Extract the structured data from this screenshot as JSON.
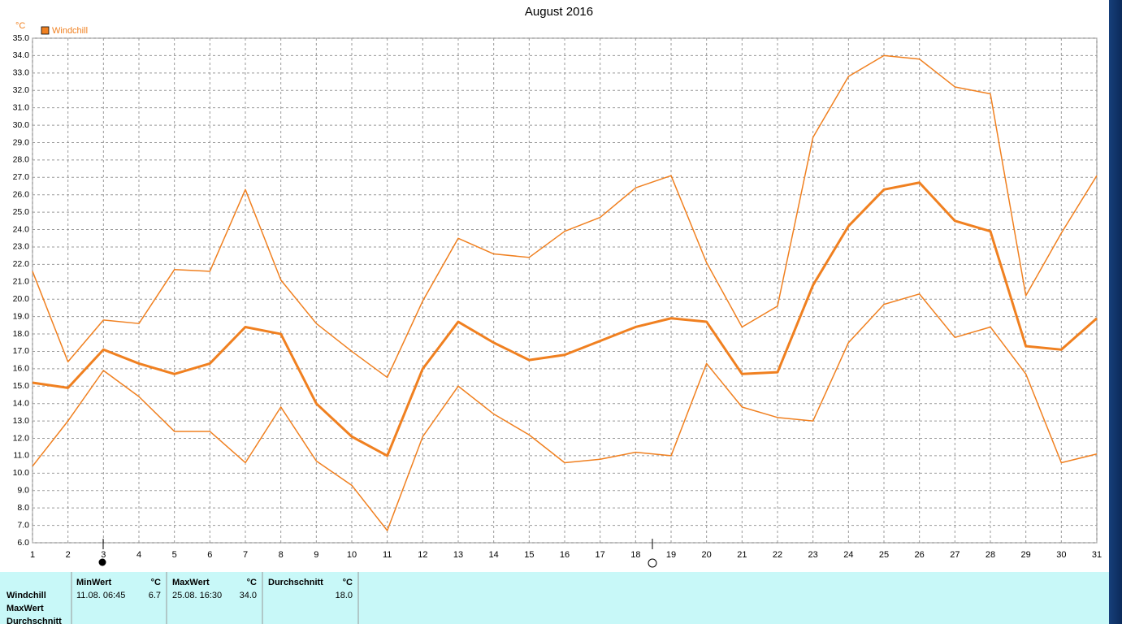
{
  "chart_data": {
    "type": "line",
    "title": "August 2016",
    "y_unit": "°C",
    "x": [
      1,
      2,
      3,
      4,
      5,
      6,
      7,
      8,
      9,
      10,
      11,
      12,
      13,
      14,
      15,
      16,
      17,
      18,
      19,
      20,
      21,
      22,
      23,
      24,
      25,
      26,
      27,
      28,
      29,
      30,
      31
    ],
    "xlim": [
      1,
      31
    ],
    "xticks": [
      1,
      2,
      3,
      4,
      5,
      6,
      7,
      8,
      9,
      10,
      11,
      12,
      13,
      14,
      15,
      16,
      17,
      18,
      19,
      20,
      21,
      22,
      23,
      24,
      25,
      26,
      27,
      28,
      29,
      30,
      31
    ],
    "ylim": [
      6,
      35
    ],
    "yticks": [
      {
        "value": 6,
        "label": "6.0"
      },
      {
        "value": 7,
        "label": "7.0"
      },
      {
        "value": 8,
        "label": "8.0"
      },
      {
        "value": 9,
        "label": "9.0"
      },
      {
        "value": 10,
        "label": "10.0"
      },
      {
        "value": 11,
        "label": "11.0"
      },
      {
        "value": 12,
        "label": "12.0"
      },
      {
        "value": 13,
        "label": "13.0"
      },
      {
        "value": 14,
        "label": "14.0"
      },
      {
        "value": 15,
        "label": "15.0"
      },
      {
        "value": 16,
        "label": "16.0"
      },
      {
        "value": 17,
        "label": "17.0"
      },
      {
        "value": 18,
        "label": "18.0"
      },
      {
        "value": 19,
        "label": "19.0"
      },
      {
        "value": 20,
        "label": "20.0"
      },
      {
        "value": 21,
        "label": "21.0"
      },
      {
        "value": 22,
        "label": "22.0"
      },
      {
        "value": 23,
        "label": "23.0"
      },
      {
        "value": 24,
        "label": "24.0"
      },
      {
        "value": 25,
        "label": "25.0"
      },
      {
        "value": 26,
        "label": "26.0"
      },
      {
        "value": 27,
        "label": "27.0"
      },
      {
        "value": 28,
        "label": "28.0"
      },
      {
        "value": 29,
        "label": "29.0"
      },
      {
        "value": 30,
        "label": "30.0"
      },
      {
        "value": 31,
        "label": "31.0"
      },
      {
        "value": 32,
        "label": "32.0"
      },
      {
        "value": 33,
        "label": "33.0"
      },
      {
        "value": 34,
        "label": "34.0"
      },
      {
        "value": 35,
        "label": "35.0"
      }
    ],
    "grid": true,
    "series": [
      {
        "color": "#f08020",
        "width": 1.5,
        "values": [
          21.6,
          16.4,
          18.8,
          18.6,
          21.7,
          21.6,
          26.3,
          21.1,
          18.6,
          17.0,
          15.5,
          19.9,
          23.5,
          22.6,
          22.4,
          23.9,
          24.7,
          26.4,
          27.1,
          22.1,
          18.4,
          19.6,
          29.3,
          32.8,
          34.0,
          33.8,
          32.2,
          31.8,
          20.2,
          23.8,
          27.1
        ]
      },
      {
        "name": "Windchill",
        "color": "#f08020",
        "width": 3,
        "values": [
          15.2,
          14.9,
          17.1,
          16.3,
          15.7,
          16.3,
          18.4,
          18.0,
          14.0,
          12.1,
          11.0,
          16.0,
          18.7,
          17.5,
          16.5,
          16.8,
          17.6,
          18.4,
          18.9,
          18.7,
          15.7,
          15.8,
          20.8,
          24.2,
          26.3,
          26.7,
          24.5,
          23.9,
          17.3,
          17.1,
          18.9
        ]
      },
      {
        "color": "#f08020",
        "width": 1.5,
        "values": [
          10.4,
          13.0,
          15.9,
          14.4,
          12.4,
          12.4,
          10.6,
          13.8,
          10.7,
          9.3,
          6.7,
          12.1,
          15.0,
          13.4,
          12.2,
          10.6,
          10.8,
          11.2,
          11.0,
          16.3,
          13.8,
          13.2,
          13.0,
          17.5,
          19.7,
          20.3,
          17.8,
          18.4,
          15.7,
          10.6,
          11.1
        ]
      }
    ]
  },
  "summary": {
    "row_labels": [
      "Windchill",
      "MaxWert",
      "Durchschnitt"
    ],
    "columns": [
      {
        "header": "MinWert",
        "unit": "°C",
        "time": "11.08. 06:45",
        "value": "6.7"
      },
      {
        "header": "MaxWert",
        "unit": "°C",
        "time": "25.08. 16:30",
        "value": "34.0"
      },
      {
        "header": "Durchschnitt",
        "unit": "°C",
        "value": "18.0"
      }
    ]
  }
}
